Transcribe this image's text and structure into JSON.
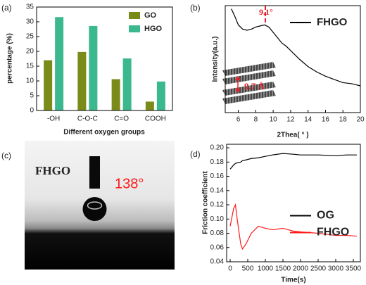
{
  "chart_data": [
    {
      "type": "bar",
      "panel_label": "(a)",
      "x_label": "Different oxygen groups",
      "y_label": "percentage (%)",
      "categories": [
        "-OH",
        "C-O-C",
        "C=O",
        "COOH"
      ],
      "series": [
        {
          "name": "GO",
          "color": "#7b8b1a",
          "values": [
            17,
            19.8,
            10.6,
            3
          ]
        },
        {
          "name": "HGO",
          "color": "#3cb88e",
          "values": [
            31.6,
            28.6,
            17.6,
            9.8
          ]
        }
      ],
      "ylim": [
        0,
        35
      ],
      "yticks": [
        0,
        5,
        10,
        15,
        20,
        25,
        30,
        35
      ],
      "legend": "upper right"
    },
    {
      "type": "line",
      "panel_label": "(b)",
      "x_label": "2Thea( ° )",
      "y_label": "Intensity(a.u.)",
      "x": [
        5.2,
        5.6,
        6.0,
        6.5,
        7.0,
        7.5,
        8.0,
        8.5,
        9.0,
        9.5,
        10.0,
        10.5,
        11.0,
        11.5,
        12.0,
        13.0,
        14.0,
        15.0,
        16.0,
        17.0,
        18.0,
        19.0,
        20.0
      ],
      "series": [
        {
          "name": "FHGO",
          "color": "#000000",
          "values": [
            0.97,
            0.9,
            0.82,
            0.78,
            0.77,
            0.78,
            0.8,
            0.81,
            0.82,
            0.8,
            0.75,
            0.7,
            0.65,
            0.62,
            0.58,
            0.5,
            0.43,
            0.38,
            0.34,
            0.31,
            0.28,
            0.27,
            0.25
          ]
        }
      ],
      "xlim": [
        4.5,
        20
      ],
      "xticks": [
        6,
        8,
        10,
        12,
        14,
        16,
        18,
        20
      ],
      "ylim": [
        0,
        1
      ],
      "peak_x": 9.1,
      "peak_color": "#e8202a",
      "annotations": [
        "9.1°",
        "9.7 Å"
      ],
      "legend": "upper right"
    },
    {
      "type": "line",
      "panel_label": "(d)",
      "x_label": "Time(s)",
      "y_label": "Friction coefficient",
      "x": [
        0,
        100,
        150,
        200,
        300,
        350,
        450,
        600,
        800,
        1000,
        1200,
        1500,
        1800,
        2000,
        2500,
        3000,
        3300,
        3600
      ],
      "series": [
        {
          "name": "OG",
          "color": "#000000",
          "values": [
            0.17,
            0.176,
            0.178,
            0.179,
            0.18,
            0.182,
            0.183,
            0.185,
            0.186,
            0.188,
            0.19,
            0.192,
            0.191,
            0.19,
            0.19,
            0.189,
            0.19,
            0.19
          ]
        },
        {
          "name": "FHGO",
          "color": "#ff1a1a",
          "values": [
            0.09,
            0.115,
            0.12,
            0.1,
            0.065,
            0.058,
            0.065,
            0.08,
            0.09,
            0.087,
            0.085,
            0.087,
            0.083,
            0.082,
            0.08,
            0.077,
            0.077,
            0.076
          ]
        }
      ],
      "xlim": [
        -100,
        3700
      ],
      "xticks": [
        0,
        500,
        1000,
        1500,
        2000,
        2500,
        3000,
        3500
      ],
      "ylim": [
        0.04,
        0.205
      ],
      "yticks": [
        0.04,
        0.06,
        0.08,
        {
          "value": 0.1,
          "label": "0.10"
        },
        0.12,
        0.14,
        0.16,
        0.18,
        {
          "value": 0.2,
          "label": "0.20"
        }
      ],
      "legend": "center right"
    }
  ],
  "photo": {
    "panel_label": "(c)",
    "sample": "FHGO",
    "contact_angle": "138°"
  }
}
